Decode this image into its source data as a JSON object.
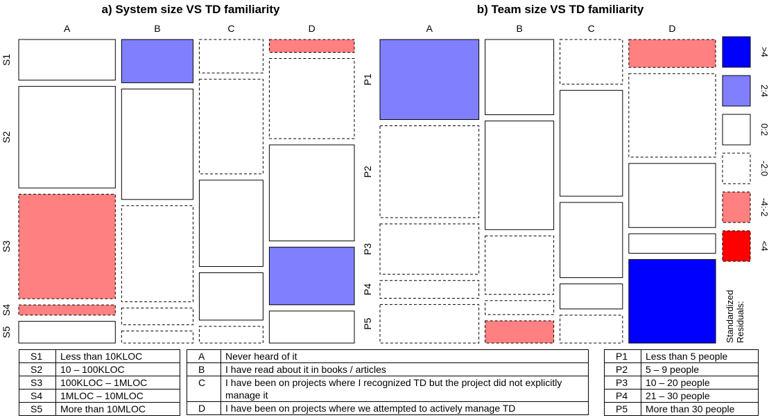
{
  "chart_data": [
    {
      "type": "mosaic",
      "title": "a) System size VS TD familiarity",
      "columns": [
        "A",
        "B",
        "C",
        "D"
      ],
      "rows": [
        "S1",
        "S2",
        "S3",
        "S4",
        "S5"
      ],
      "column_proportions": [
        0.25,
        0.185,
        0.165,
        0.22
      ],
      "cells": [
        [
          {
            "p": 0.14,
            "residual": "0:2"
          },
          {
            "p": 0.35,
            "residual": "0:2"
          },
          {
            "p": 0.36,
            "residual": "-4:-2"
          },
          {
            "p": 0.035,
            "residual": "-4:-2"
          },
          {
            "p": 0.075,
            "residual": "0:2"
          }
        ],
        [
          {
            "p": 0.18,
            "residual": "2:4"
          },
          {
            "p": 0.46,
            "residual": "0:2"
          },
          {
            "p": 0.4,
            "residual": "-2:0"
          },
          {
            "p": 0.07,
            "residual": "-2:0"
          },
          {
            "p": 0.05,
            "residual": "-2:0"
          }
        ],
        [
          {
            "p": 0.12,
            "residual": "-2:0"
          },
          {
            "p": 0.34,
            "residual": "-2:0"
          },
          {
            "p": 0.31,
            "residual": "0:2"
          },
          {
            "p": 0.17,
            "residual": "0:2"
          },
          {
            "p": 0.06,
            "residual": "-2:0"
          }
        ],
        [
          {
            "p": 0.04,
            "residual": "-4:-2"
          },
          {
            "p": 0.25,
            "residual": "-2:0"
          },
          {
            "p": 0.3,
            "residual": "0:2"
          },
          {
            "p": 0.18,
            "residual": "2:4"
          },
          {
            "p": 0.1,
            "residual": "0:2"
          }
        ]
      ]
    },
    {
      "type": "mosaic",
      "title": "b) Team size VS TD familiarity",
      "columns": [
        "A",
        "B",
        "C",
        "D"
      ],
      "rows": [
        "P1",
        "P2",
        "P3",
        "P4",
        "P5"
      ],
      "column_proportions": [
        0.245,
        0.17,
        0.155,
        0.215
      ],
      "cells": [
        [
          {
            "p": 0.27,
            "residual": "2:4"
          },
          {
            "p": 0.31,
            "residual": "-2:0"
          },
          {
            "p": 0.17,
            "residual": "-2:0"
          },
          {
            "p": 0.06,
            "residual": "-2:0"
          },
          {
            "p": 0.13,
            "residual": "-2:0"
          }
        ],
        [
          {
            "p": 0.27,
            "residual": "0:2"
          },
          {
            "p": 0.39,
            "residual": "0:2"
          },
          {
            "p": 0.21,
            "residual": "-2:0"
          },
          {
            "p": 0.05,
            "residual": "-2:0"
          },
          {
            "p": 0.08,
            "residual": "-4:-2"
          }
        ],
        [
          {
            "p": 0.16,
            "residual": "-2:0"
          },
          {
            "p": 0.38,
            "residual": "0:2"
          },
          {
            "p": 0.27,
            "residual": "0:2"
          },
          {
            "p": 0.09,
            "residual": "0:2"
          },
          {
            "p": 0.1,
            "residual": "-2:0"
          }
        ],
        [
          {
            "p": 0.1,
            "residual": "-4:-2"
          },
          {
            "p": 0.3,
            "residual": "-2:0"
          },
          {
            "p": 0.23,
            "residual": "0:2"
          },
          {
            "p": 0.07,
            "residual": "0:2"
          },
          {
            "p": 0.3,
            "residual": ">4"
          }
        ]
      ]
    }
  ],
  "legend": {
    "title_line1": "Standardized",
    "title_line2": "Residuals:",
    "items": [
      {
        "label": ">4",
        "fill": "#0000ff",
        "dashed": false
      },
      {
        "label": "2:4",
        "fill": "#8080ff",
        "dashed": false
      },
      {
        "label": "0:2",
        "fill": "#ffffff",
        "dashed": false
      },
      {
        "label": "-2:0",
        "fill": "#ffffff",
        "dashed": true
      },
      {
        "label": "-4:-2",
        "fill": "#ff8080",
        "dashed": true
      },
      {
        "label": "<4",
        "fill": "#ff0000",
        "dashed": true
      }
    ]
  },
  "tables": {
    "system_sizes": [
      {
        "code": "S1",
        "desc": "Less than 10KLOC"
      },
      {
        "code": "S2",
        "desc": "10 – 100KLOC"
      },
      {
        "code": "S3",
        "desc": "100KLOC – 1MLOC"
      },
      {
        "code": "S4",
        "desc": "1MLOC – 10MLOC"
      },
      {
        "code": "S5",
        "desc": "More than 10MLOC"
      }
    ],
    "familiarity": [
      {
        "code": "A",
        "desc": "Never heard of it"
      },
      {
        "code": "B",
        "desc": "I have read about it in books / articles"
      },
      {
        "code": "C",
        "desc": "I have been on projects where I recognized TD but the project did not explicitly manage it"
      },
      {
        "code": "D",
        "desc": "I have been on projects where we attempted to actively manage TD"
      }
    ],
    "team_sizes": [
      {
        "code": "P1",
        "desc": "Less than 5 people"
      },
      {
        "code": "P2",
        "desc": "5 – 9 people"
      },
      {
        "code": "P3",
        "desc": "10 – 20 people"
      },
      {
        "code": "P4",
        "desc": "21 – 30 people"
      },
      {
        "code": "P5",
        "desc": "More than 30 people"
      }
    ]
  }
}
